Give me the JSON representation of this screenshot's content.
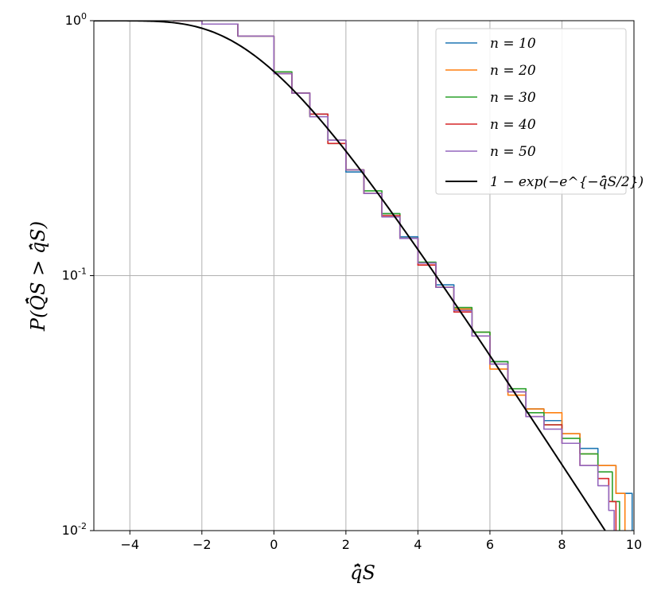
{
  "chart_data": {
    "type": "line",
    "title": "",
    "xlabel": "q̄̂S",
    "ylabel": "P(Q̄̂S > q̄̂S)",
    "xlim": [
      -5,
      10
    ],
    "ylim": [
      0.01,
      1.0
    ],
    "yscale": "log",
    "grid": true,
    "legend_position": "top-right",
    "x_ticks": [
      -4,
      -2,
      0,
      2,
      4,
      6,
      8,
      10
    ],
    "x_tick_labels": [
      "−4",
      "−2",
      "0",
      "2",
      "4",
      "6",
      "8",
      "10"
    ],
    "y_ticks": [
      0.01,
      0.1,
      1.0
    ],
    "y_tick_labels": [
      {
        "base": "10",
        "exp": "-2"
      },
      {
        "base": "10",
        "exp": "-1"
      },
      {
        "base": "10",
        "exp": "0"
      }
    ],
    "series": [
      {
        "name": "n = 10",
        "color": "#1f77b4",
        "points": [
          [
            -2.8,
            1.0
          ],
          [
            -2.0,
            0.97
          ],
          [
            -1.0,
            0.87
          ],
          [
            0.0,
            0.62
          ],
          [
            0.5,
            0.52
          ],
          [
            1.0,
            0.43
          ],
          [
            1.5,
            0.34
          ],
          [
            2.0,
            0.255
          ],
          [
            2.5,
            0.21
          ],
          [
            3.0,
            0.175
          ],
          [
            3.5,
            0.142
          ],
          [
            4.0,
            0.112
          ],
          [
            4.5,
            0.092
          ],
          [
            5.0,
            0.074
          ],
          [
            5.5,
            0.06
          ],
          [
            6.0,
            0.046
          ],
          [
            6.5,
            0.035
          ],
          [
            7.0,
            0.03
          ],
          [
            7.5,
            0.027
          ],
          [
            8.0,
            0.024
          ],
          [
            8.5,
            0.021
          ],
          [
            9.0,
            0.018
          ],
          [
            9.5,
            0.014
          ],
          [
            9.95,
            0.01
          ]
        ]
      },
      {
        "name": "n = 20",
        "color": "#ff7f0e",
        "points": [
          [
            -2.8,
            1.0
          ],
          [
            -2.0,
            0.97
          ],
          [
            -1.0,
            0.87
          ],
          [
            0.0,
            0.62
          ],
          [
            0.5,
            0.52
          ],
          [
            1.0,
            0.42
          ],
          [
            1.5,
            0.34
          ],
          [
            2.0,
            0.26
          ],
          [
            2.5,
            0.21
          ],
          [
            3.0,
            0.17
          ],
          [
            3.5,
            0.14
          ],
          [
            4.0,
            0.11
          ],
          [
            4.5,
            0.09
          ],
          [
            5.0,
            0.074
          ],
          [
            5.5,
            0.06
          ],
          [
            6.0,
            0.043
          ],
          [
            6.5,
            0.034
          ],
          [
            7.0,
            0.03
          ],
          [
            7.5,
            0.029
          ],
          [
            8.0,
            0.024
          ],
          [
            8.5,
            0.02
          ],
          [
            9.0,
            0.018
          ],
          [
            9.5,
            0.014
          ],
          [
            9.75,
            0.01
          ]
        ]
      },
      {
        "name": "n = 30",
        "color": "#2ca02c",
        "points": [
          [
            -2.8,
            1.0
          ],
          [
            -2.0,
            0.97
          ],
          [
            -1.0,
            0.87
          ],
          [
            0.0,
            0.63
          ],
          [
            0.5,
            0.52
          ],
          [
            1.0,
            0.42
          ],
          [
            1.5,
            0.33
          ],
          [
            2.0,
            0.26
          ],
          [
            2.5,
            0.215
          ],
          [
            3.0,
            0.175
          ],
          [
            3.5,
            0.14
          ],
          [
            4.0,
            0.113
          ],
          [
            4.5,
            0.09
          ],
          [
            5.0,
            0.075
          ],
          [
            5.5,
            0.06
          ],
          [
            6.0,
            0.046
          ],
          [
            6.5,
            0.036
          ],
          [
            7.0,
            0.029
          ],
          [
            7.5,
            0.026
          ],
          [
            8.0,
            0.023
          ],
          [
            8.5,
            0.02
          ],
          [
            9.0,
            0.017
          ],
          [
            9.4,
            0.013
          ],
          [
            9.6,
            0.01
          ]
        ]
      },
      {
        "name": "n = 40",
        "color": "#d62728",
        "points": [
          [
            -2.8,
            1.0
          ],
          [
            -2.0,
            0.97
          ],
          [
            -1.0,
            0.87
          ],
          [
            0.0,
            0.62
          ],
          [
            0.5,
            0.52
          ],
          [
            1.0,
            0.43
          ],
          [
            1.5,
            0.33
          ],
          [
            2.0,
            0.26
          ],
          [
            2.5,
            0.21
          ],
          [
            3.0,
            0.172
          ],
          [
            3.5,
            0.14
          ],
          [
            4.0,
            0.11
          ],
          [
            4.5,
            0.09
          ],
          [
            5.0,
            0.072
          ],
          [
            5.5,
            0.058
          ],
          [
            6.0,
            0.045
          ],
          [
            6.5,
            0.035
          ],
          [
            7.0,
            0.028
          ],
          [
            7.5,
            0.026
          ],
          [
            8.0,
            0.022
          ],
          [
            8.5,
            0.018
          ],
          [
            9.0,
            0.016
          ],
          [
            9.3,
            0.013
          ],
          [
            9.5,
            0.01
          ]
        ]
      },
      {
        "name": "n = 50",
        "color": "#9467bd",
        "points": [
          [
            -2.8,
            1.0
          ],
          [
            -2.0,
            0.97
          ],
          [
            -1.0,
            0.87
          ],
          [
            0.0,
            0.62
          ],
          [
            0.5,
            0.52
          ],
          [
            1.0,
            0.42
          ],
          [
            1.5,
            0.34
          ],
          [
            2.0,
            0.26
          ],
          [
            2.5,
            0.21
          ],
          [
            3.0,
            0.17
          ],
          [
            3.5,
            0.14
          ],
          [
            4.0,
            0.112
          ],
          [
            4.5,
            0.09
          ],
          [
            5.0,
            0.073
          ],
          [
            5.5,
            0.058
          ],
          [
            6.0,
            0.045
          ],
          [
            6.5,
            0.035
          ],
          [
            7.0,
            0.028
          ],
          [
            7.5,
            0.025
          ],
          [
            8.0,
            0.022
          ],
          [
            8.5,
            0.018
          ],
          [
            9.0,
            0.015
          ],
          [
            9.3,
            0.012
          ],
          [
            9.45,
            0.01
          ]
        ]
      },
      {
        "name": "1 − exp(−e^{−q̄̂S/2})",
        "color": "#000000",
        "function": "1-exp(-exp(-x/2))"
      }
    ]
  }
}
